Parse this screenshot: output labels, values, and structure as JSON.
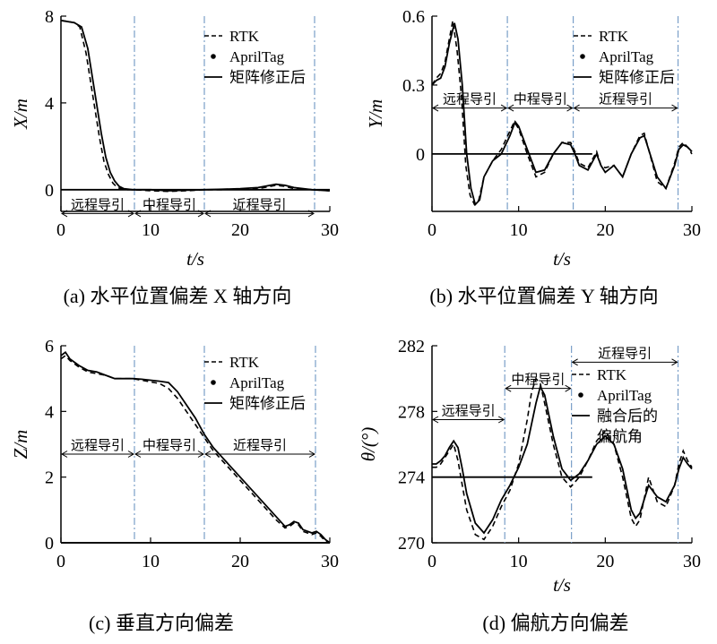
{
  "chart_data": [
    {
      "id": "a",
      "type": "line",
      "caption": "(a) 水平位置偏差 X 轴方向",
      "xlabel": "t/s",
      "ylabel": "X/m",
      "xlim": [
        0,
        30
      ],
      "ylim": [
        -1,
        8
      ],
      "xticks": [
        "0",
        "10",
        "20",
        "30"
      ],
      "yticks": [
        "0",
        "4",
        "8"
      ],
      "ytick_values": [
        0,
        4,
        8
      ],
      "show_xticks": true,
      "legend": {
        "position": "top-right",
        "entries": [
          {
            "style": "dash",
            "label": "RTK"
          },
          {
            "style": "dot",
            "label": "AprilTag"
          },
          {
            "style": "solid",
            "label": "矩阵修正后"
          }
        ]
      },
      "phase_lines": [
        8.2,
        16,
        28.3
      ],
      "phases": [
        {
          "from": 0,
          "to": 8.2,
          "label": "远程导引"
        },
        {
          "from": 8.2,
          "to": 16,
          "label": "中程导引"
        },
        {
          "from": 16,
          "to": 28.3,
          "label": "近程导引"
        }
      ],
      "phase_y": -1.1,
      "series": [
        {
          "style": "solid",
          "x": [
            0,
            1.5,
            2.3,
            3,
            3.5,
            4,
            4.5,
            5,
            5.5,
            6,
            6.5,
            7,
            8,
            10,
            12,
            14,
            16,
            18,
            20,
            22,
            24,
            25,
            26,
            28,
            30
          ],
          "y": [
            7.8,
            7.7,
            7.5,
            6.5,
            5.2,
            3.9,
            2.6,
            1.5,
            0.8,
            0.4,
            0.15,
            0.05,
            0.0,
            0.0,
            -0.05,
            -0.02,
            0.0,
            0.02,
            0.05,
            0.1,
            0.25,
            0.2,
            0.1,
            0.0,
            -0.05
          ]
        },
        {
          "style": "dash",
          "x": [
            0,
            1.5,
            2.1,
            2.8,
            3.3,
            3.8,
            4.3,
            4.8,
            5.3,
            5.8,
            6.3,
            7,
            8,
            10,
            12,
            14,
            16,
            18,
            20,
            22,
            24,
            25,
            26,
            28,
            30
          ],
          "y": [
            7.8,
            7.7,
            7.5,
            6.3,
            5.0,
            3.7,
            2.4,
            1.3,
            0.7,
            0.3,
            0.1,
            0.0,
            0.0,
            -0.05,
            -0.08,
            -0.05,
            0.0,
            0.0,
            0.02,
            0.05,
            0.2,
            0.15,
            0.05,
            0.0,
            -0.05
          ]
        },
        {
          "style": "baseline",
          "x": [
            0,
            30
          ],
          "y": [
            0,
            0
          ]
        }
      ]
    },
    {
      "id": "b",
      "type": "line",
      "caption": "(b) 水平位置偏差 Y 轴方向",
      "xlabel": "t/s",
      "ylabel": "Y/m",
      "xlim": [
        0,
        30
      ],
      "ylim": [
        -0.25,
        0.6
      ],
      "xticks": [
        "0",
        "10",
        "20",
        "30"
      ],
      "yticks": [
        "0",
        "0.3",
        "0.6"
      ],
      "ytick_values": [
        0,
        0.3,
        0.6
      ],
      "show_xticks": true,
      "legend": {
        "position": "top-right",
        "entries": [
          {
            "style": "dash",
            "label": "RTK"
          },
          {
            "style": "dot",
            "label": "AprilTag"
          },
          {
            "style": "solid",
            "label": "矩阵修正后"
          }
        ]
      },
      "phase_lines": [
        8.7,
        16.3,
        28.4
      ],
      "phases": [
        {
          "from": 0,
          "to": 8.7,
          "label": "远程导引"
        },
        {
          "from": 8.7,
          "to": 16.3,
          "label": "中程导引"
        },
        {
          "from": 16.3,
          "to": 28.4,
          "label": "近程导引"
        }
      ],
      "phase_y": 0.2,
      "series": [
        {
          "style": "solid",
          "x": [
            0,
            0.5,
            1,
            1.5,
            2,
            2.6,
            3,
            3.5,
            4,
            4.5,
            5,
            5.5,
            6,
            7,
            8,
            9,
            9.6,
            10,
            11,
            12,
            13,
            14,
            15,
            16,
            16.5,
            17,
            18,
            19,
            19.5,
            20,
            21,
            22,
            23,
            24,
            24.5,
            25,
            26,
            27,
            28,
            28.5,
            29,
            29.5,
            30
          ],
          "y": [
            0.3,
            0.32,
            0.33,
            0.38,
            0.48,
            0.57,
            0.5,
            0.3,
            0.0,
            -0.15,
            -0.22,
            -0.2,
            -0.1,
            -0.03,
            0.0,
            0.08,
            0.14,
            0.12,
            0.02,
            -0.08,
            -0.07,
            0.0,
            0.05,
            0.04,
            0.0,
            -0.05,
            -0.07,
            0.0,
            -0.05,
            -0.08,
            -0.05,
            -0.1,
            0.0,
            0.07,
            0.08,
            0.02,
            -0.1,
            -0.15,
            -0.05,
            0.02,
            0.04,
            0.03,
            0.01
          ]
        },
        {
          "style": "dash",
          "x": [
            0,
            0.5,
            1,
            1.5,
            2,
            2.4,
            2.9,
            3.4,
            3.9,
            4.4,
            4.9,
            5.4,
            6,
            7,
            8,
            9,
            9.5,
            10,
            11,
            12,
            13,
            14,
            15,
            16,
            16.5,
            17,
            18,
            19,
            19.5,
            20,
            21,
            22,
            23,
            24,
            24.5,
            25,
            26,
            27,
            28,
            28.5,
            29,
            29.5,
            30
          ],
          "y": [
            0.3,
            0.33,
            0.35,
            0.4,
            0.5,
            0.58,
            0.45,
            0.25,
            -0.05,
            -0.18,
            -0.22,
            -0.2,
            -0.1,
            -0.03,
            0.02,
            0.1,
            0.14,
            0.11,
            0.0,
            -0.1,
            -0.08,
            0.0,
            0.05,
            0.05,
            0.01,
            -0.04,
            -0.06,
            0.01,
            -0.05,
            -0.06,
            -0.05,
            -0.1,
            0.0,
            0.08,
            0.09,
            0.02,
            -0.12,
            -0.15,
            -0.04,
            0.03,
            0.05,
            0.03,
            0.0
          ]
        },
        {
          "style": "baseline",
          "x": [
            0,
            18.5
          ],
          "y": [
            0,
            0
          ]
        }
      ]
    },
    {
      "id": "c",
      "type": "line",
      "caption": "(c) 垂直方向偏差",
      "xlabel": "",
      "ylabel": "Z/m",
      "xlim": [
        0,
        30
      ],
      "ylim": [
        0,
        6
      ],
      "xticks": [
        "0",
        "10",
        "20",
        "30"
      ],
      "yticks": [
        "0",
        "2",
        "4",
        "6"
      ],
      "ytick_values": [
        0,
        2,
        4,
        6
      ],
      "show_xticks": true,
      "legend": {
        "position": "top-right",
        "entries": [
          {
            "style": "dash",
            "label": "RTK"
          },
          {
            "style": "dot",
            "label": "AprilTag"
          },
          {
            "style": "solid",
            "label": "矩阵修正后"
          }
        ]
      },
      "phase_lines": [
        8.2,
        16,
        28.4
      ],
      "phases": [
        {
          "from": 0,
          "to": 8.2,
          "label": "远程导引"
        },
        {
          "from": 8.2,
          "to": 16,
          "label": "中程导引"
        },
        {
          "from": 16,
          "to": 28.4,
          "label": "近程导引"
        }
      ],
      "phase_y": 2.7,
      "series": [
        {
          "style": "solid",
          "x": [
            0,
            0.5,
            1,
            2,
            3,
            4,
            5,
            6,
            7,
            8,
            9,
            10,
            11,
            12,
            13,
            14,
            15,
            16,
            17,
            18,
            19,
            20,
            21,
            22,
            23,
            24,
            25,
            25.5,
            26,
            26.5,
            27,
            28,
            28.5,
            29,
            29.5,
            30
          ],
          "y": [
            5.7,
            5.8,
            5.6,
            5.4,
            5.25,
            5.2,
            5.1,
            5.0,
            5.0,
            5.0,
            4.98,
            4.95,
            4.92,
            4.88,
            4.6,
            4.2,
            3.8,
            3.3,
            2.9,
            2.6,
            2.3,
            2.0,
            1.7,
            1.4,
            1.1,
            0.8,
            0.5,
            0.55,
            0.65,
            0.6,
            0.4,
            0.3,
            0.35,
            0.25,
            0.1,
            0.0
          ]
        },
        {
          "style": "dash",
          "x": [
            0,
            0.5,
            1,
            2,
            3,
            4,
            5,
            6,
            7,
            8,
            9,
            10,
            11,
            12,
            13,
            14,
            15,
            16,
            17,
            18,
            19,
            20,
            21,
            22,
            23,
            24,
            25,
            25.5,
            26,
            26.5,
            27,
            28,
            28.5,
            29,
            29.5,
            30
          ],
          "y": [
            5.6,
            5.7,
            5.55,
            5.35,
            5.2,
            5.15,
            5.1,
            5.0,
            5.0,
            5.0,
            4.95,
            4.9,
            4.85,
            4.7,
            4.4,
            4.0,
            3.6,
            3.2,
            2.8,
            2.5,
            2.2,
            1.9,
            1.6,
            1.3,
            1.0,
            0.7,
            0.45,
            0.5,
            0.6,
            0.55,
            0.35,
            0.25,
            0.3,
            0.2,
            0.05,
            0.0
          ]
        },
        {
          "style": "baseline",
          "x": [
            0,
            30
          ],
          "y": [
            0,
            0
          ]
        }
      ]
    },
    {
      "id": "d",
      "type": "line",
      "caption": "(d) 偏航方向偏差",
      "xlabel": "t/s",
      "ylabel": "θ/(°)",
      "xlim": [
        0,
        30
      ],
      "ylim": [
        270,
        282
      ],
      "xticks": [
        "0",
        "10",
        "20",
        "30"
      ],
      "yticks": [
        "270",
        "274",
        "278",
        "282"
      ],
      "ytick_values": [
        270,
        274,
        278,
        282
      ],
      "show_xticks": true,
      "legend": {
        "position": "top-right",
        "entries": [
          {
            "style": "dash",
            "label": "RTK"
          },
          {
            "style": "dot",
            "label": "AprilTag"
          },
          {
            "style": "solid",
            "label": "融合后的"
          },
          {
            "style": "none",
            "label": "偏航角"
          }
        ]
      },
      "phase_lines": [
        8.4,
        16.1,
        28.4
      ],
      "phases": [
        {
          "from": 0,
          "to": 8.4,
          "label": "远程导引"
        },
        {
          "from": 8.4,
          "to": 16.1,
          "label": "中程导引"
        },
        {
          "from": 16.1,
          "to": 28.4,
          "label": "近程导引"
        }
      ],
      "phase_label_y": [
        277.5,
        279.4,
        281.0
      ],
      "series": [
        {
          "style": "solid",
          "x": [
            0,
            0.5,
            1,
            1.5,
            2,
            2.5,
            3,
            3.5,
            4,
            5,
            6,
            7,
            8,
            9,
            10,
            11,
            12,
            12.5,
            13,
            14,
            15,
            16,
            17,
            18,
            19,
            20,
            21,
            22,
            23,
            23.5,
            24,
            25,
            26,
            27,
            28,
            28.5,
            29,
            29.5,
            30
          ],
          "y": [
            274.8,
            274.8,
            275.0,
            275.3,
            275.8,
            276.2,
            275.8,
            274.5,
            273.0,
            271.2,
            270.6,
            271.4,
            272.6,
            273.5,
            274.6,
            276.0,
            278.5,
            279.5,
            279.0,
            276.5,
            274.5,
            273.8,
            274.2,
            275.0,
            276.0,
            276.5,
            276.0,
            274.5,
            272.0,
            271.5,
            271.8,
            273.5,
            272.8,
            272.5,
            273.5,
            274.5,
            275.2,
            274.8,
            274.5
          ]
        },
        {
          "style": "dash",
          "x": [
            0,
            0.5,
            1,
            1.5,
            2,
            2.5,
            3,
            3.5,
            4,
            5,
            6,
            7,
            8,
            9,
            10,
            11,
            11.5,
            12,
            12.5,
            13,
            14,
            15,
            16,
            17,
            18,
            19,
            20,
            21,
            22,
            23,
            23.5,
            24,
            25,
            26,
            27,
            28,
            28.5,
            29,
            29.5,
            30
          ],
          "y": [
            274.6,
            274.6,
            274.8,
            275.2,
            275.6,
            276.0,
            275.0,
            273.5,
            272.0,
            270.5,
            270.2,
            271.0,
            272.2,
            273.2,
            274.8,
            277.5,
            279.2,
            280.0,
            279.7,
            278.5,
            276.0,
            274.0,
            273.4,
            274.0,
            275.0,
            276.2,
            276.8,
            276.0,
            274.0,
            271.5,
            271.0,
            271.4,
            274.0,
            272.5,
            272.2,
            273.5,
            274.8,
            275.6,
            275.0,
            274.6
          ]
        },
        {
          "style": "baseline",
          "x": [
            0,
            18.5
          ],
          "y": [
            274,
            274
          ]
        }
      ]
    }
  ]
}
